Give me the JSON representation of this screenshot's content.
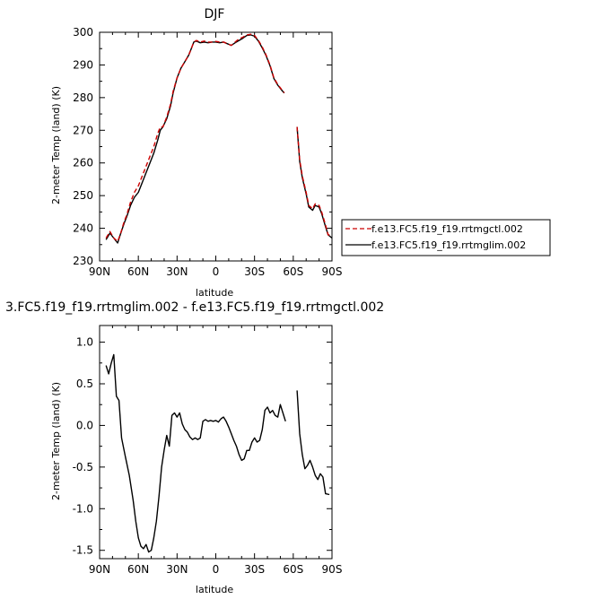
{
  "charts": {
    "top": {
      "title": "DJF"
    },
    "bottom": {
      "title": "3.FC5.f19_f19.rrtmglim.002 - f.e13.FC5.f19_f19.rrtmgctl.002"
    }
  },
  "legend": {
    "items": [
      {
        "label": "f.e13.FC5.f19_f19.rrtmgctl.002",
        "color": "#cc0000",
        "dash": true
      },
      {
        "label": "f.e13.FC5.f19_f19.rrtmglim.002",
        "color": "#000000",
        "dash": false
      }
    ]
  },
  "chart_data": [
    {
      "type": "line",
      "title": "DJF",
      "xlabel": "latitude",
      "ylabel": "2-meter Temp (land) (K)",
      "xlim": [
        90,
        -90
      ],
      "ylim": [
        230,
        300
      ],
      "xticks": [
        90,
        60,
        30,
        0,
        -30,
        -60,
        -90
      ],
      "xtick_labels": [
        "90N",
        "60N",
        "30N",
        "0",
        "30S",
        "60S",
        "90S"
      ],
      "yticks": [
        230,
        240,
        250,
        260,
        270,
        280,
        290,
        300
      ],
      "ytick_labels": [
        "230",
        "240",
        "250",
        "260",
        "270",
        "280",
        "290",
        "300"
      ],
      "grid": false,
      "legend_position": "right",
      "series": [
        {
          "name": "f.e13.FC5.f19_f19.rrtmgctl.002",
          "color": "#cc0000",
          "dash": true,
          "segments": [
            [
              [
                85,
                237
              ],
              [
                82,
                239
              ],
              [
                79,
                237
              ],
              [
                76,
                236
              ],
              [
                74,
                238
              ],
              [
                71,
                242
              ],
              [
                69,
                244
              ],
              [
                66,
                248
              ],
              [
                63,
                251
              ],
              [
                60,
                253
              ],
              [
                57,
                256
              ],
              [
                54,
                259
              ],
              [
                51,
                262
              ],
              [
                48,
                265
              ],
              [
                45,
                269
              ],
              [
                43,
                271
              ],
              [
                41,
                271
              ],
              [
                38,
                274
              ],
              [
                35,
                278
              ],
              [
                33,
                282
              ],
              [
                30,
                286
              ],
              [
                27,
                289
              ],
              [
                24,
                291
              ],
              [
                21,
                293
              ],
              [
                19,
                295
              ],
              [
                17,
                297
              ],
              [
                15,
                297.5
              ],
              [
                12,
                297
              ],
              [
                9,
                297.3
              ],
              [
                6,
                297
              ],
              [
                3,
                297
              ],
              [
                0,
                297.2
              ],
              [
                -3,
                297
              ],
              [
                -6,
                297
              ],
              [
                -9,
                296.5
              ],
              [
                -12,
                296
              ],
              [
                -15,
                297
              ],
              [
                -18,
                298
              ],
              [
                -21,
                298.5
              ],
              [
                -24,
                299.2
              ],
              [
                -27,
                299.4
              ],
              [
                -30,
                299
              ],
              [
                -33,
                297.5
              ],
              [
                -36,
                295.5
              ],
              [
                -39,
                293
              ],
              [
                -42,
                290
              ],
              [
                -45,
                286
              ],
              [
                -48,
                284
              ],
              [
                -51,
                282.5
              ],
              [
                -53,
                281.5
              ]
            ],
            [
              [
                -63,
                271
              ],
              [
                -65,
                261
              ],
              [
                -67,
                256
              ],
              [
                -70,
                251
              ],
              [
                -72,
                247
              ],
              [
                -75,
                246
              ],
              [
                -77,
                247.5
              ],
              [
                -80,
                247
              ],
              [
                -82,
                245
              ],
              [
                -85,
                241
              ],
              [
                -87,
                238
              ],
              [
                -90,
                238
              ]
            ]
          ]
        },
        {
          "name": "f.e13.FC5.f19_f19.rrtmglim.002",
          "color": "#000000",
          "dash": false,
          "segments": [
            [
              [
                85,
                236.5
              ],
              [
                82,
                238.5
              ],
              [
                79,
                237
              ],
              [
                76,
                235.5
              ],
              [
                74,
                238
              ],
              [
                71,
                241.5
              ],
              [
                69,
                243.5
              ],
              [
                66,
                247
              ],
              [
                63,
                249.5
              ],
              [
                60,
                251
              ],
              [
                57,
                254
              ],
              [
                54,
                257
              ],
              [
                51,
                260
              ],
              [
                48,
                263
              ],
              [
                45,
                267
              ],
              [
                43,
                270
              ],
              [
                41,
                271
              ],
              [
                38,
                273.5
              ],
              [
                35,
                277.5
              ],
              [
                33,
                281.5
              ],
              [
                30,
                286
              ],
              [
                27,
                289
              ],
              [
                24,
                291
              ],
              [
                21,
                293
              ],
              [
                19,
                295
              ],
              [
                17,
                297
              ],
              [
                15,
                297.3
              ],
              [
                12,
                296.8
              ],
              [
                9,
                297
              ],
              [
                6,
                296.8
              ],
              [
                3,
                297
              ],
              [
                0,
                297
              ],
              [
                -3,
                296.8
              ],
              [
                -6,
                297
              ],
              [
                -9,
                296.5
              ],
              [
                -12,
                296
              ],
              [
                -15,
                296.8
              ],
              [
                -18,
                297.5
              ],
              [
                -21,
                298.2
              ],
              [
                -24,
                299
              ],
              [
                -27,
                299.2
              ],
              [
                -30,
                298.8
              ],
              [
                -33,
                297.3
              ],
              [
                -36,
                295.2
              ],
              [
                -39,
                292.8
              ],
              [
                -42,
                289.8
              ],
              [
                -45,
                285.8
              ],
              [
                -48,
                283.8
              ],
              [
                -51,
                282.3
              ],
              [
                -53,
                281.4
              ]
            ],
            [
              [
                -63,
                271
              ],
              [
                -65,
                260.5
              ],
              [
                -67,
                255.5
              ],
              [
                -70,
                250.5
              ],
              [
                -72,
                246.5
              ],
              [
                -75,
                245.5
              ],
              [
                -77,
                247
              ],
              [
                -80,
                246.5
              ],
              [
                -82,
                244.5
              ],
              [
                -85,
                240.5
              ],
              [
                -87,
                238
              ],
              [
                -90,
                237
              ]
            ]
          ]
        }
      ]
    },
    {
      "type": "line",
      "title": "3.FC5.f19_f19.rrtmglim.002 - f.e13.FC5.f19_f19.rrtmgctl.002",
      "xlabel": "latitude",
      "ylabel": "2-meter Temp (land) (K)",
      "xlim": [
        90,
        -90
      ],
      "ylim": [
        -1.6,
        1.2
      ],
      "xticks": [
        90,
        60,
        30,
        0,
        -30,
        -60,
        -90
      ],
      "xtick_labels": [
        "90N",
        "60N",
        "30N",
        "0",
        "30S",
        "60S",
        "90S"
      ],
      "yticks": [
        -1.5,
        -1.0,
        -0.5,
        0.0,
        0.5,
        1.0
      ],
      "ytick_labels": [
        "-1.5",
        "-1.0",
        "-0.5",
        "0.0",
        "0.5",
        "1.0"
      ],
      "grid": false,
      "series": [
        {
          "name": "",
          "color": "#000000",
          "dash": false,
          "segments": [
            [
              [
                85,
                0.72
              ],
              [
                83,
                0.62
              ],
              [
                81,
                0.75
              ],
              [
                79,
                0.85
              ],
              [
                77,
                0.35
              ],
              [
                75,
                0.3
              ],
              [
                73,
                -0.15
              ],
              [
                70,
                -0.38
              ],
              [
                67,
                -0.6
              ],
              [
                64,
                -0.9
              ],
              [
                62,
                -1.15
              ],
              [
                60,
                -1.35
              ],
              [
                58,
                -1.45
              ],
              [
                56,
                -1.48
              ],
              [
                54,
                -1.43
              ],
              [
                52,
                -1.52
              ],
              [
                50,
                -1.5
              ],
              [
                48,
                -1.35
              ],
              [
                46,
                -1.15
              ],
              [
                44,
                -0.85
              ],
              [
                42,
                -0.5
              ],
              [
                40,
                -0.3
              ],
              [
                38,
                -0.12
              ],
              [
                36,
                -0.25
              ],
              [
                34,
                0.12
              ],
              [
                32,
                0.15
              ],
              [
                30,
                0.1
              ],
              [
                28,
                0.15
              ],
              [
                26,
                0.02
              ],
              [
                24,
                -0.05
              ],
              [
                22,
                -0.08
              ],
              [
                20,
                -0.14
              ],
              [
                18,
                -0.17
              ],
              [
                16,
                -0.15
              ],
              [
                14,
                -0.17
              ],
              [
                12,
                -0.15
              ],
              [
                10,
                0.05
              ],
              [
                8,
                0.07
              ],
              [
                6,
                0.05
              ],
              [
                4,
                0.06
              ],
              [
                2,
                0.05
              ],
              [
                0,
                0.06
              ],
              [
                -2,
                0.04
              ],
              [
                -4,
                0.08
              ],
              [
                -6,
                0.1
              ],
              [
                -8,
                0.05
              ],
              [
                -10,
                -0.02
              ],
              [
                -12,
                -0.1
              ],
              [
                -14,
                -0.18
              ],
              [
                -16,
                -0.25
              ],
              [
                -18,
                -0.35
              ],
              [
                -20,
                -0.42
              ],
              [
                -22,
                -0.4
              ],
              [
                -24,
                -0.3
              ],
              [
                -26,
                -0.3
              ],
              [
                -28,
                -0.2
              ],
              [
                -30,
                -0.15
              ],
              [
                -32,
                -0.2
              ],
              [
                -34,
                -0.18
              ],
              [
                -36,
                -0.05
              ],
              [
                -38,
                0.18
              ],
              [
                -40,
                0.22
              ],
              [
                -42,
                0.15
              ],
              [
                -44,
                0.18
              ],
              [
                -46,
                0.12
              ],
              [
                -48,
                0.1
              ],
              [
                -50,
                0.25
              ],
              [
                -52,
                0.15
              ],
              [
                -54,
                0.05
              ]
            ],
            [
              [
                -63,
                0.42
              ],
              [
                -65,
                -0.1
              ],
              [
                -67,
                -0.35
              ],
              [
                -69,
                -0.52
              ],
              [
                -71,
                -0.48
              ],
              [
                -73,
                -0.42
              ],
              [
                -75,
                -0.5
              ],
              [
                -77,
                -0.6
              ],
              [
                -79,
                -0.65
              ],
              [
                -81,
                -0.58
              ],
              [
                -83,
                -0.62
              ],
              [
                -85,
                -0.82
              ],
              [
                -88,
                -0.83
              ]
            ]
          ]
        }
      ]
    }
  ]
}
